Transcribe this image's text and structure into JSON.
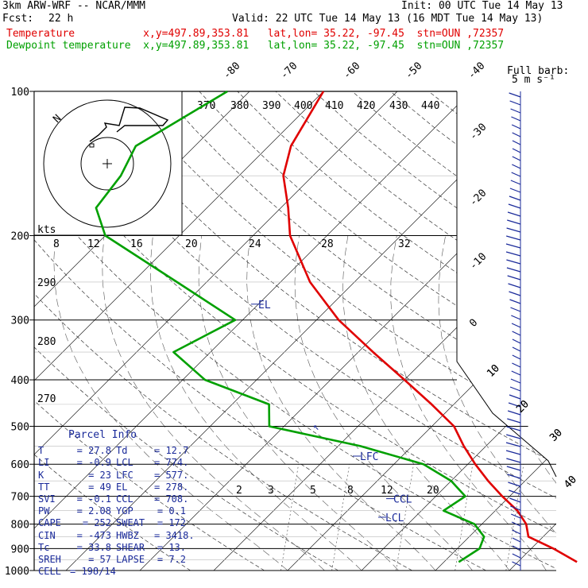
{
  "header": {
    "model": "3km ARW-WRF -- NCAR/MMM",
    "init": "Init: 00 UTC Tue 14 May 13",
    "fcst_label": "Fcst:",
    "fcst_value": "22 h",
    "valid": "Valid: 22 UTC Tue 14 May 13 (16 MDT Tue 14 May 13)",
    "temperature_line": "Temperature           x,y=497.89,353.81   lat,lon= 35.22, -97.45  stn=OUN ,72357",
    "dewpoint_line": "Dewpoint temperature  x,y=497.89,353.81   lat,lon= 35.22, -97.45  stn=OUN ,72357",
    "full_barb": "Full barb:",
    "full_barb_unit": "5 m s⁻¹"
  },
  "colors": {
    "temperature": "#e00000",
    "dewpoint": "#00a000",
    "annotation": "#1a2a9a"
  },
  "parcel_info": {
    "title": "Parcel Info",
    "rows": [
      [
        "T",
        "=",
        "27.8",
        "Td",
        "=",
        "12.7"
      ],
      [
        "LI",
        "=",
        "-0.9",
        "LCL",
        "=",
        "774."
      ],
      [
        "K",
        "=",
        "23",
        "LFC",
        "=",
        "577."
      ],
      [
        "TT",
        "=",
        "49",
        "EL",
        "=",
        "278."
      ],
      [
        "SVI",
        "=",
        "-0.1",
        "CCL",
        "=",
        "708."
      ],
      [
        "PW",
        "=",
        "2.08",
        "YGP",
        "=",
        "0.1"
      ],
      [
        "CAPE",
        "=",
        "252",
        "SWEAT",
        "=",
        "172"
      ],
      [
        "CIN",
        "=",
        "-473",
        "HWBZ",
        "=",
        "3418."
      ],
      [
        "Tc",
        "=",
        "33.8",
        "SHEAR",
        "=",
        "13."
      ],
      [
        "SREH",
        "=",
        "57",
        "LAPSE",
        "=",
        "7.2"
      ],
      [
        "CELL",
        "=",
        "198/14",
        "",
        "",
        ""
      ]
    ]
  },
  "hodograph": {
    "axis_label": "kts",
    "ring_label": "N"
  },
  "chart_data": {
    "type": "line",
    "title": "",
    "y_axis": {
      "label": "",
      "scale": "log-pressure",
      "ticks": [
        100,
        200,
        300,
        400,
        500,
        600,
        700,
        800,
        900,
        1000
      ],
      "ylim": [
        1000,
        100
      ]
    },
    "isotherm_labels": [
      -80,
      -70,
      -60,
      -50,
      -40,
      -30,
      -20,
      -10,
      0,
      10,
      20,
      30,
      40
    ],
    "potential_temperature_labels": [
      370,
      380,
      390,
      400,
      410,
      420,
      430,
      440,
      290,
      280,
      270
    ],
    "mixing_ratio_labels": [
      "8",
      "12",
      "16",
      "20",
      "24",
      "28",
      "32",
      "2",
      "3",
      "5",
      "8",
      "12",
      "20"
    ],
    "series": [
      {
        "name": "Temperature",
        "color": "#e00000",
        "points": [
          {
            "p": 100,
            "t": -70
          },
          {
            "p": 130,
            "t": -67
          },
          {
            "p": 150,
            "t": -64
          },
          {
            "p": 175,
            "t": -59
          },
          {
            "p": 200,
            "t": -55
          },
          {
            "p": 250,
            "t": -46
          },
          {
            "p": 300,
            "t": -37
          },
          {
            "p": 350,
            "t": -28
          },
          {
            "p": 400,
            "t": -20
          },
          {
            "p": 450,
            "t": -13
          },
          {
            "p": 500,
            "t": -7
          },
          {
            "p": 550,
            "t": -3
          },
          {
            "p": 600,
            "t": 1
          },
          {
            "p": 650,
            "t": 5
          },
          {
            "p": 700,
            "t": 9
          },
          {
            "p": 750,
            "t": 13
          },
          {
            "p": 800,
            "t": 16
          },
          {
            "p": 850,
            "t": 18
          },
          {
            "p": 900,
            "t": 23
          },
          {
            "p": 960,
            "t": 28
          }
        ]
      },
      {
        "name": "Dewpoint temperature",
        "color": "#00a000",
        "points": [
          {
            "p": 100,
            "t": -83
          },
          {
            "p": 130,
            "t": -88
          },
          {
            "p": 150,
            "t": -86
          },
          {
            "p": 175,
            "t": -85
          },
          {
            "p": 200,
            "t": -80
          },
          {
            "p": 250,
            "t": -64
          },
          {
            "p": 300,
            "t": -51
          },
          {
            "p": 350,
            "t": -55
          },
          {
            "p": 400,
            "t": -47
          },
          {
            "p": 450,
            "t": -35
          },
          {
            "p": 500,
            "t": -32
          },
          {
            "p": 550,
            "t": -17
          },
          {
            "p": 600,
            "t": -6
          },
          {
            "p": 650,
            "t": 0
          },
          {
            "p": 700,
            "t": 4
          },
          {
            "p": 750,
            "t": 3
          },
          {
            "p": 800,
            "t": 9
          },
          {
            "p": 850,
            "t": 12
          },
          {
            "p": 900,
            "t": 13
          },
          {
            "p": 960,
            "t": 12
          }
        ]
      }
    ],
    "level_markers": [
      {
        "label": "EL",
        "p": 278
      },
      {
        "label": "LFC",
        "p": 577
      },
      {
        "label": "CCL",
        "p": 708
      },
      {
        "label": "LCL",
        "p": 774
      }
    ],
    "wind_barb_labels": [
      10,
      20,
      30,
      40
    ]
  }
}
